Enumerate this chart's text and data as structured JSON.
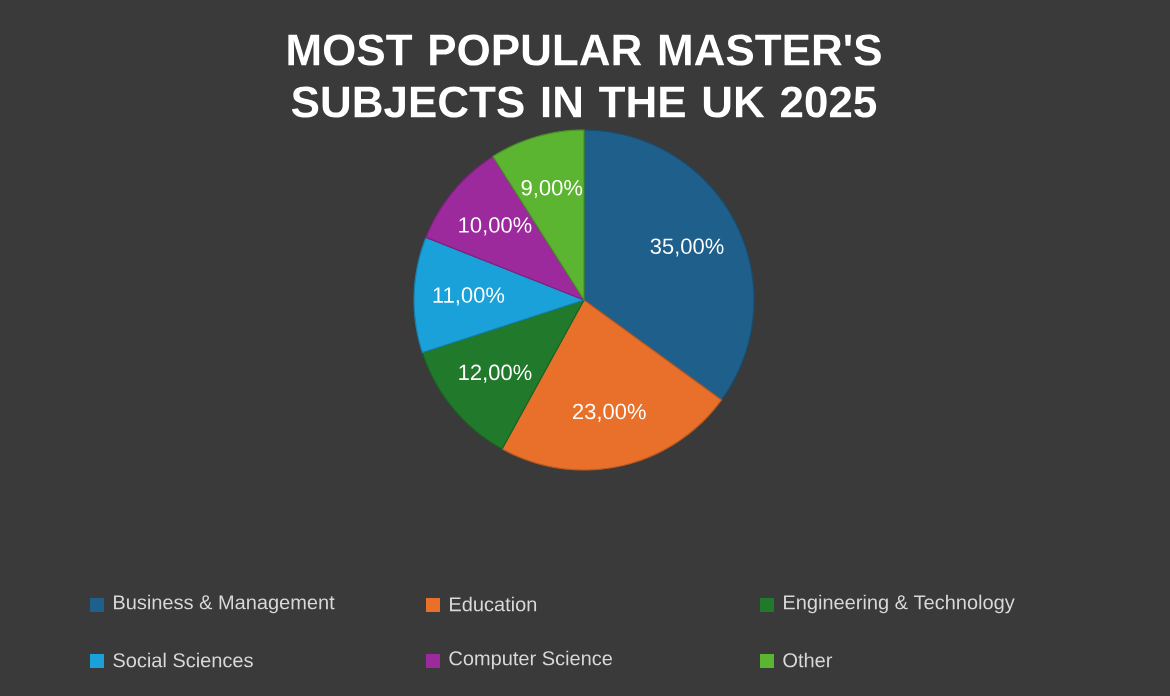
{
  "chart_data": {
    "type": "pie",
    "title": "MOST POPULAR MASTER'S SUBJECTS IN THE UK 2025",
    "categories": [
      "Business & Management",
      "Education",
      "Engineering & Technology",
      "Social Sciences",
      "Computer Science",
      "Other"
    ],
    "values": [
      35,
      23,
      12,
      11,
      10,
      9
    ],
    "colors": [
      "#1f5f8b",
      "#e8702a",
      "#217a2c",
      "#1ba1d9",
      "#9c2a9c",
      "#5bb531"
    ],
    "value_labels": [
      "35,00%",
      "23,00%",
      "12,00%",
      "11,00%",
      "10,00%",
      "9,00%"
    ],
    "legend": "bottom"
  }
}
